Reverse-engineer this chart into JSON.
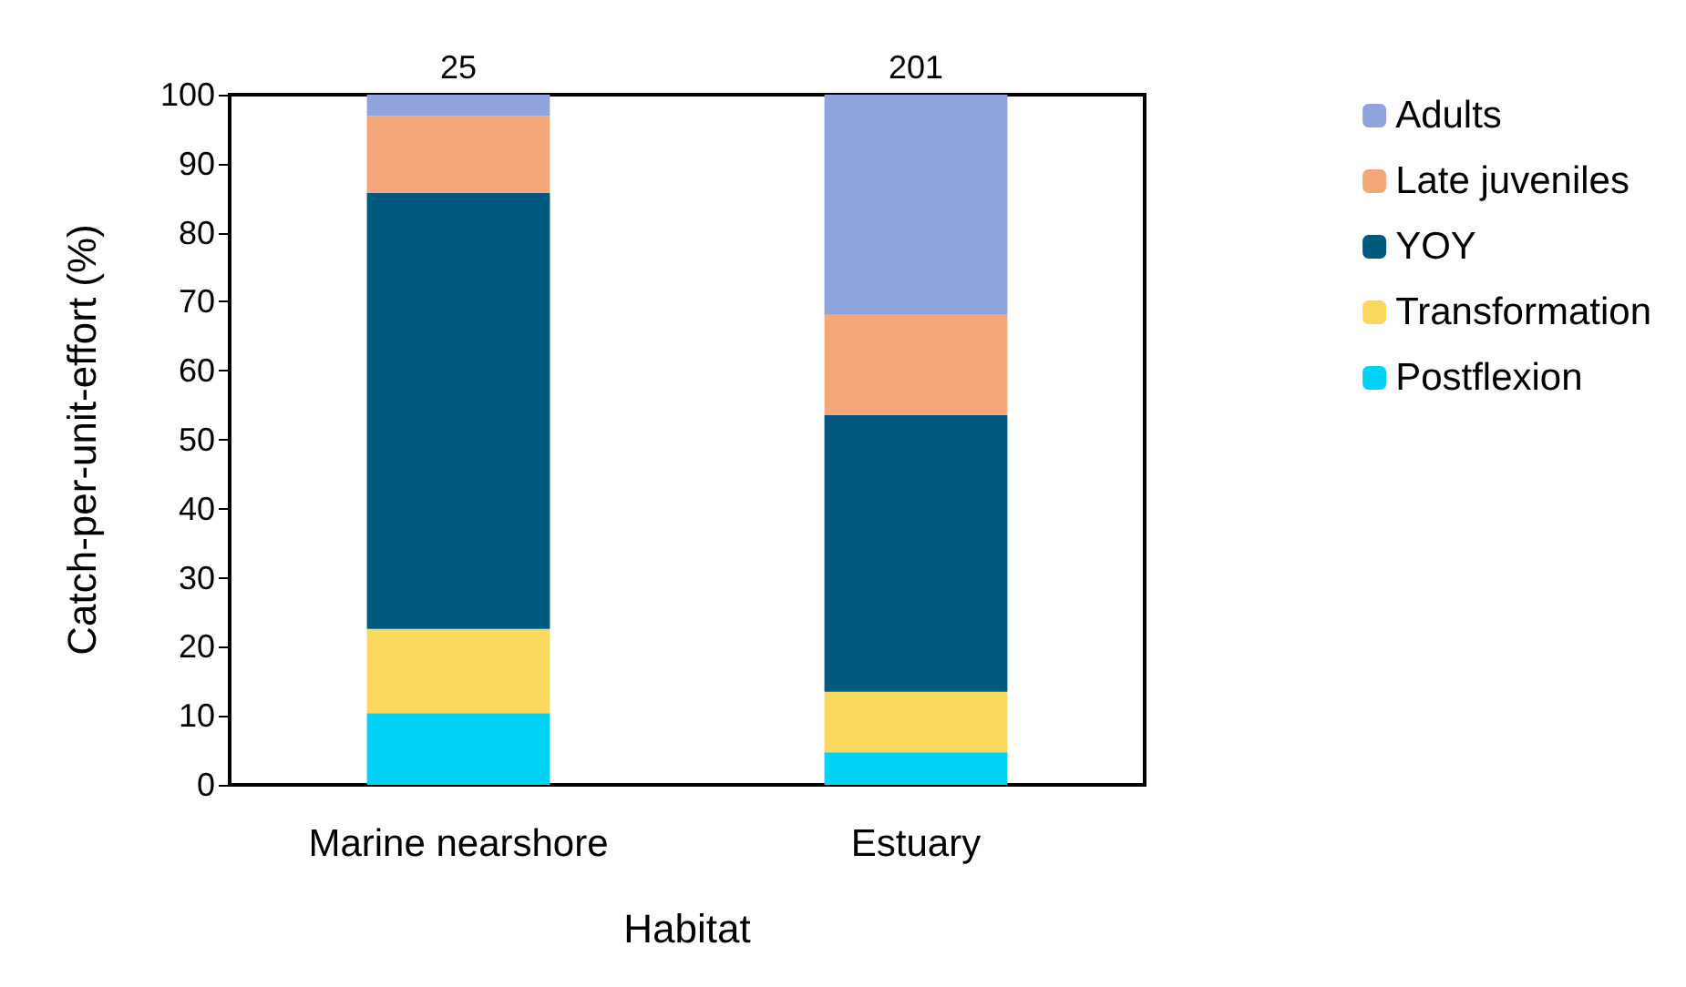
{
  "chart_data": {
    "type": "bar",
    "stacked": true,
    "xlabel": "Habitat",
    "ylabel": "Catch-per-unit-effort (%)",
    "categories": [
      "Marine nearshore",
      "Estuary"
    ],
    "series": [
      {
        "name": "Postflexion",
        "color": "#00d2f5",
        "values": [
          10.4,
          4.7
        ]
      },
      {
        "name": "Transformation",
        "color": "#f9d85e",
        "values": [
          12.2,
          8.8
        ]
      },
      {
        "name": "YOY",
        "color": "#005a80",
        "values": [
          63.2,
          40.1
        ]
      },
      {
        "name": "Late juveniles",
        "color": "#f4a77a",
        "values": [
          11.1,
          14.5
        ]
      },
      {
        "name": "Adults",
        "color": "#8fa4dc",
        "values": [
          3.1,
          31.9
        ]
      }
    ],
    "annotations": [
      {
        "text": "25",
        "x": "Marine nearshore",
        "y": 100
      },
      {
        "text": "201",
        "x": "Estuary",
        "y": 100
      }
    ],
    "ylim": [
      0,
      100
    ],
    "yticks": [
      0,
      10,
      20,
      30,
      40,
      50,
      60,
      70,
      80,
      90,
      100
    ],
    "grid": false,
    "legend": "right"
  }
}
